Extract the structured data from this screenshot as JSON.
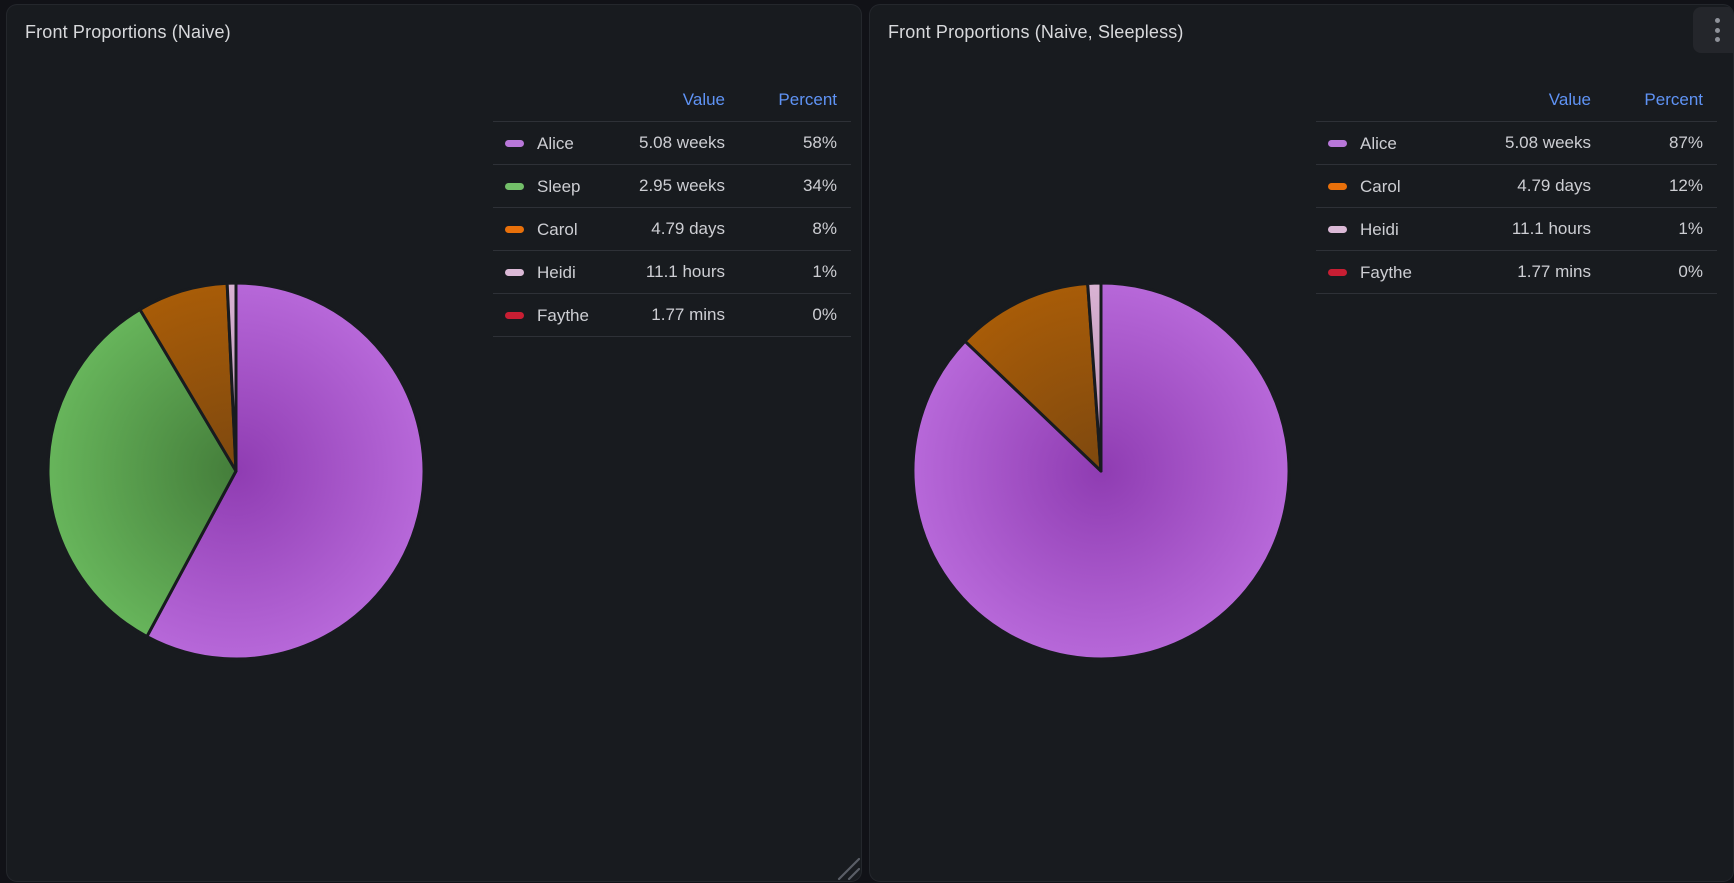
{
  "colors": {
    "page_bg": "#111217",
    "panel_bg": "#181B1F",
    "panel_border": "rgba(204,204,220,0.07)",
    "title": "#D8D9DC",
    "text": "#CDCED3",
    "link_blue": "#5F93F5",
    "row_border": "rgba(204,204,220,0.13)",
    "kebab_bg": "#24262B",
    "kebab_dot": "#8E9199",
    "grip": "#5A5E66"
  },
  "panels": [
    {
      "title": "Front Proportions (Naive)",
      "legend": {
        "value_header": "Value",
        "percent_header": "Percent"
      }
    },
    {
      "title": "Front Proportions (Naive, Sleepless)",
      "legend": {
        "value_header": "Value",
        "percent_header": "Percent"
      }
    }
  ],
  "chart_data": [
    {
      "type": "pie",
      "title": "Front Proportions (Naive)",
      "legend_columns": [
        "Value",
        "Percent"
      ],
      "legend_position": "right-top",
      "start_angle_deg": 0,
      "direction": "clockwise",
      "series": [
        {
          "label": "Alice",
          "value": 5.08,
          "unit": "weeks",
          "value_text": "5.08 weeks",
          "percent_text": "58%",
          "fraction": 0.5786,
          "color": "#B877D9",
          "pie_inner": "#8F3CB2",
          "pie_outer": "#B768D9"
        },
        {
          "label": "Sleep",
          "value": 2.95,
          "unit": "weeks",
          "value_text": "2.95 weeks",
          "percent_text": "34%",
          "fraction": 0.336,
          "color": "#73BF69",
          "pie_inner": "#447D3A",
          "pie_outer": "#67B55B"
        },
        {
          "label": "Carol",
          "value": 4.79,
          "unit": "days",
          "value_text": "4.79 days",
          "percent_text": "8%",
          "fraction": 0.0779,
          "color": "#E8700A",
          "pie_inner": "#7D480F",
          "pie_outer": "#A85C08"
        },
        {
          "label": "Heidi",
          "value": 11.1,
          "unit": "hours",
          "value_text": "11.1 hours",
          "percent_text": "1%",
          "fraction": 0.0075,
          "color": "#DBB9D6",
          "pie_inner": "#B78FB1",
          "pie_outer": "#D9B3D3"
        },
        {
          "label": "Faythe",
          "value": 1.77,
          "unit": "mins",
          "value_text": "1.77 mins",
          "percent_text": "0%",
          "fraction": 2e-05,
          "color": "#C81E33",
          "pie_inner": "#C4162A",
          "pie_outer": "#C4162A"
        }
      ]
    },
    {
      "type": "pie",
      "title": "Front Proportions (Naive, Sleepless)",
      "legend_columns": [
        "Value",
        "Percent"
      ],
      "legend_position": "right-top",
      "start_angle_deg": 0,
      "direction": "clockwise",
      "series": [
        {
          "label": "Alice",
          "value": 5.08,
          "unit": "weeks",
          "value_text": "5.08 weeks",
          "percent_text": "87%",
          "fraction": 0.8713,
          "color": "#B877D9",
          "pie_inner": "#8F3CB2",
          "pie_outer": "#B768D9"
        },
        {
          "label": "Carol",
          "value": 4.79,
          "unit": "days",
          "value_text": "4.79 days",
          "percent_text": "12%",
          "fraction": 0.1174,
          "color": "#E8700A",
          "pie_inner": "#7D480F",
          "pie_outer": "#A85C08"
        },
        {
          "label": "Heidi",
          "value": 11.1,
          "unit": "hours",
          "value_text": "11.1 hours",
          "percent_text": "1%",
          "fraction": 0.0113,
          "color": "#DBB9D6",
          "pie_inner": "#B78FB1",
          "pie_outer": "#D9B3D3"
        },
        {
          "label": "Faythe",
          "value": 1.77,
          "unit": "mins",
          "value_text": "1.77 mins",
          "percent_text": "0%",
          "fraction": 3e-05,
          "color": "#C81E33",
          "pie_inner": "#C4162A",
          "pie_outer": "#C4162A"
        }
      ]
    }
  ]
}
